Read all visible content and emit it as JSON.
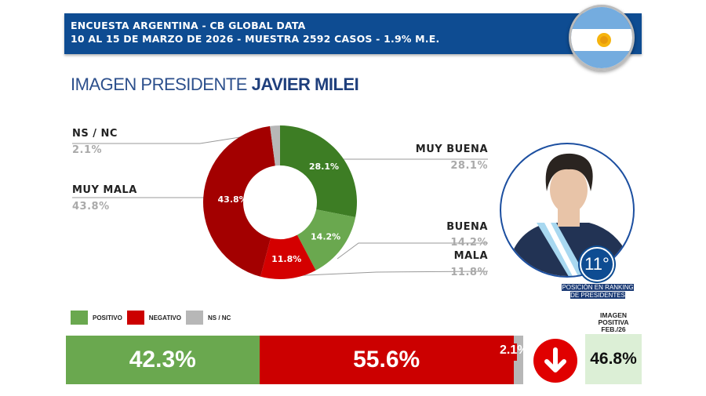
{
  "header": {
    "line1": "ENCUESTA ARGENTINA - CB GLOBAL DATA",
    "line2": "10 AL 15 DE MARZO DE 2026 - MUESTRA 2592 CASOS - 1.9% M.E."
  },
  "title": {
    "prefix": "IMAGEN PRESIDENTE",
    "name": "JAVIER MILEI"
  },
  "chart_data": [
    {
      "type": "pie",
      "variant": "donut",
      "start": "top",
      "direction": "clockwise",
      "slices": [
        {
          "name": "MUY BUENA",
          "value": 28.1,
          "label": "28.1%",
          "color": "#3d7d24"
        },
        {
          "name": "BUENA",
          "value": 14.2,
          "label": "14.2%",
          "color": "#6aa84f"
        },
        {
          "name": "MALA",
          "value": 11.8,
          "label": "11.8%",
          "color": "#d40000"
        },
        {
          "name": "MUY MALA",
          "value": 43.8,
          "label": "43.8%",
          "color": "#a30000"
        },
        {
          "name": "NS / NC",
          "value": 2.1,
          "label": "2.1%",
          "color": "#b7b7b7"
        }
      ]
    },
    {
      "type": "bar",
      "variant": "stacked-horizontal",
      "legend": [
        {
          "name": "POSITIVO",
          "color": "#6aa84f"
        },
        {
          "name": "NEGATIVO",
          "color": "#cc0000"
        },
        {
          "name": "NS / NC",
          "color": "#b7b7b7"
        }
      ],
      "legend_placement": "top-left",
      "series": [
        {
          "name": "POSITIVO",
          "value": 42.3,
          "label": "42.3%"
        },
        {
          "name": "NEGATIVO",
          "value": 55.6,
          "label": "55.6%"
        },
        {
          "name": "NS / NC",
          "value": 2.1,
          "label": "2.1%"
        }
      ]
    }
  ],
  "ranking": {
    "position": "11°",
    "caption1": "POSICIÓN EN RANKING",
    "caption2": "DE PRESIDENTES"
  },
  "previous": {
    "label1": "IMAGEN",
    "label2": "POSITIVA",
    "label3": "FEB./26",
    "value": "46.8%",
    "trend": "down",
    "trend_color": "#e00000"
  }
}
